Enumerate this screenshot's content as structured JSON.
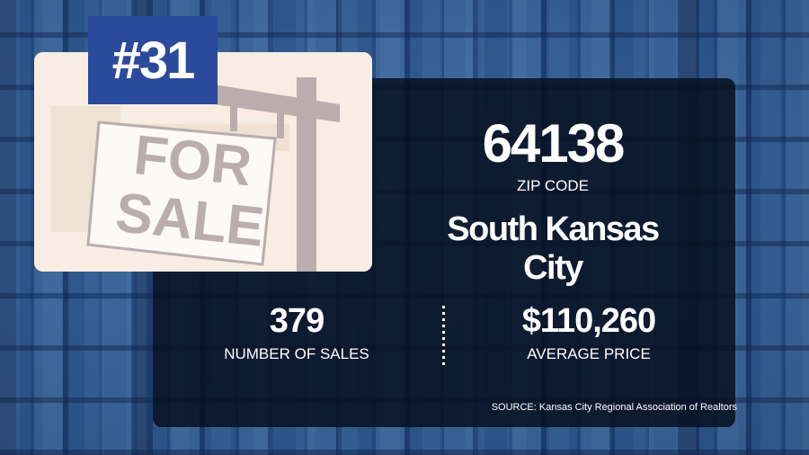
{
  "background": {
    "description_icon": "aerial-neighborhood-photo"
  },
  "rank": {
    "label": "#31"
  },
  "sign": {
    "line1": "FOR",
    "line2": "SALE"
  },
  "zip": {
    "value": "64138",
    "label": "ZIP CODE"
  },
  "area": {
    "name": "South Kansas City"
  },
  "stats": {
    "sales_value": "379",
    "sales_label": "NUMBER OF SALES",
    "price_value": "$110,260",
    "price_label": "AVERAGE PRICE"
  },
  "source": {
    "text": "SOURCE: Kansas City Regional Association of Realtors"
  },
  "colors": {
    "panel": "#060e1e",
    "rank_bg": "#2b4a9b",
    "card_bg": "#f7ede2",
    "sign_text": "#b9aeab"
  }
}
